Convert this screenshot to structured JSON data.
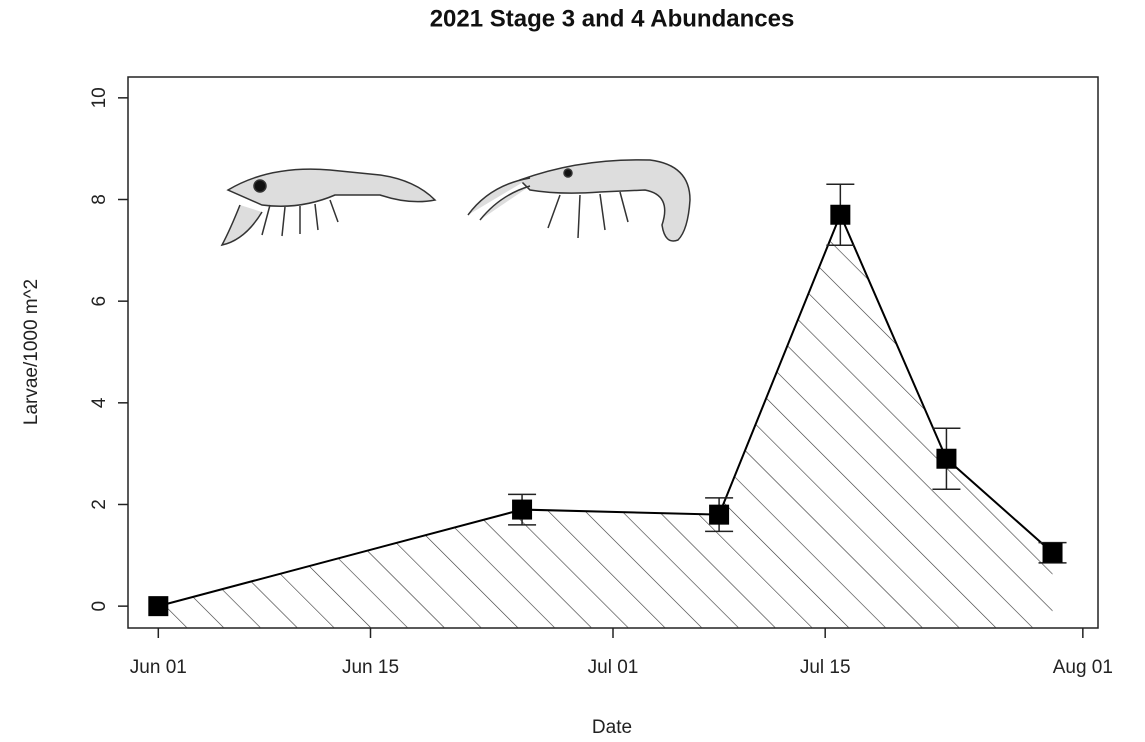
{
  "chart_data": {
    "type": "line",
    "title": "2021 Stage 3 and 4 Abundances",
    "x_label": "Date",
    "y_label": "Larvae/1000 m^2",
    "x": [
      "Jun 01",
      "Jun 25",
      "Jul 08",
      "Jul 16",
      "Jul 23",
      "Jul 30"
    ],
    "values": [
      0,
      1.9,
      1.8,
      7.7,
      2.9,
      1.05
    ],
    "errors": [
      0,
      0.3,
      0.33,
      0.6,
      0.6,
      0.2
    ],
    "color": "#000000",
    "fill_pattern": "hatch",
    "xlim": [
      "May 30",
      "Aug 02"
    ],
    "xticks": [
      "Jun 01",
      "Jun 15",
      "Jul 01",
      "Jul 15",
      "Aug 01"
    ],
    "ylim": [
      -0.43,
      10.41
    ],
    "yticks": [
      0,
      2,
      4,
      6,
      8,
      10
    ],
    "grid": false
  }
}
